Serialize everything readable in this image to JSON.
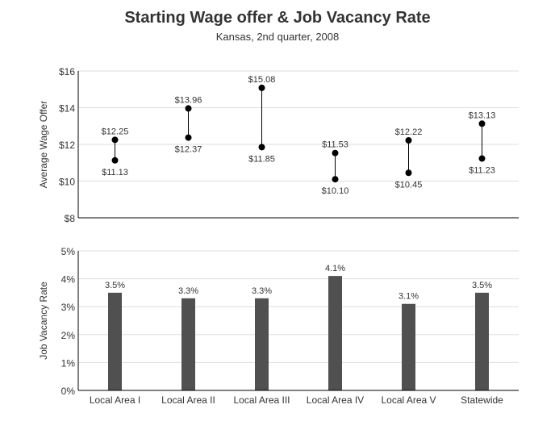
{
  "title": "Starting Wage offer & Job Vacancy Rate",
  "subtitle": "Kansas, 2nd quarter, 2008",
  "chart_data": [
    {
      "type": "range-dot",
      "ylabel": "Average Wage Offer",
      "ylim": [
        8,
        16
      ],
      "yticks": [
        "$8",
        "$10",
        "$12",
        "$14",
        "$16"
      ],
      "ytick_values": [
        8,
        10,
        12,
        14,
        16
      ],
      "grid": true,
      "categories": [
        "Local Area I",
        "Local Area II",
        "Local Area III",
        "Local Area IV",
        "Local Area V",
        "Statewide"
      ],
      "high": [
        12.25,
        13.96,
        15.08,
        11.53,
        12.22,
        13.13
      ],
      "low": [
        11.13,
        12.37,
        11.85,
        10.1,
        10.45,
        11.23
      ],
      "high_labels": [
        "$12.25",
        "$13.96",
        "$15.08",
        "$11.53",
        "$12.22",
        "$13.13"
      ],
      "low_labels": [
        "$11.13",
        "$12.37",
        "$11.85",
        "$10.10",
        "$10.45",
        "$11.23"
      ],
      "color": "#000000"
    },
    {
      "type": "bar",
      "ylabel": "Job Vacancy Rate",
      "ylim": [
        0,
        5
      ],
      "yticks": [
        "0%",
        "1%",
        "2%",
        "3%",
        "4%",
        "5%"
      ],
      "ytick_values": [
        0,
        1,
        2,
        3,
        4,
        5
      ],
      "grid": true,
      "categories": [
        "Local Area I",
        "Local Area II",
        "Local Area III",
        "Local Area IV",
        "Local Area V",
        "Statewide"
      ],
      "values": [
        3.5,
        3.3,
        3.3,
        4.1,
        3.1,
        3.5
      ],
      "value_labels": [
        "3.5%",
        "3.3%",
        "3.3%",
        "4.1%",
        "3.1%",
        "3.5%"
      ],
      "color": "#505050"
    }
  ]
}
